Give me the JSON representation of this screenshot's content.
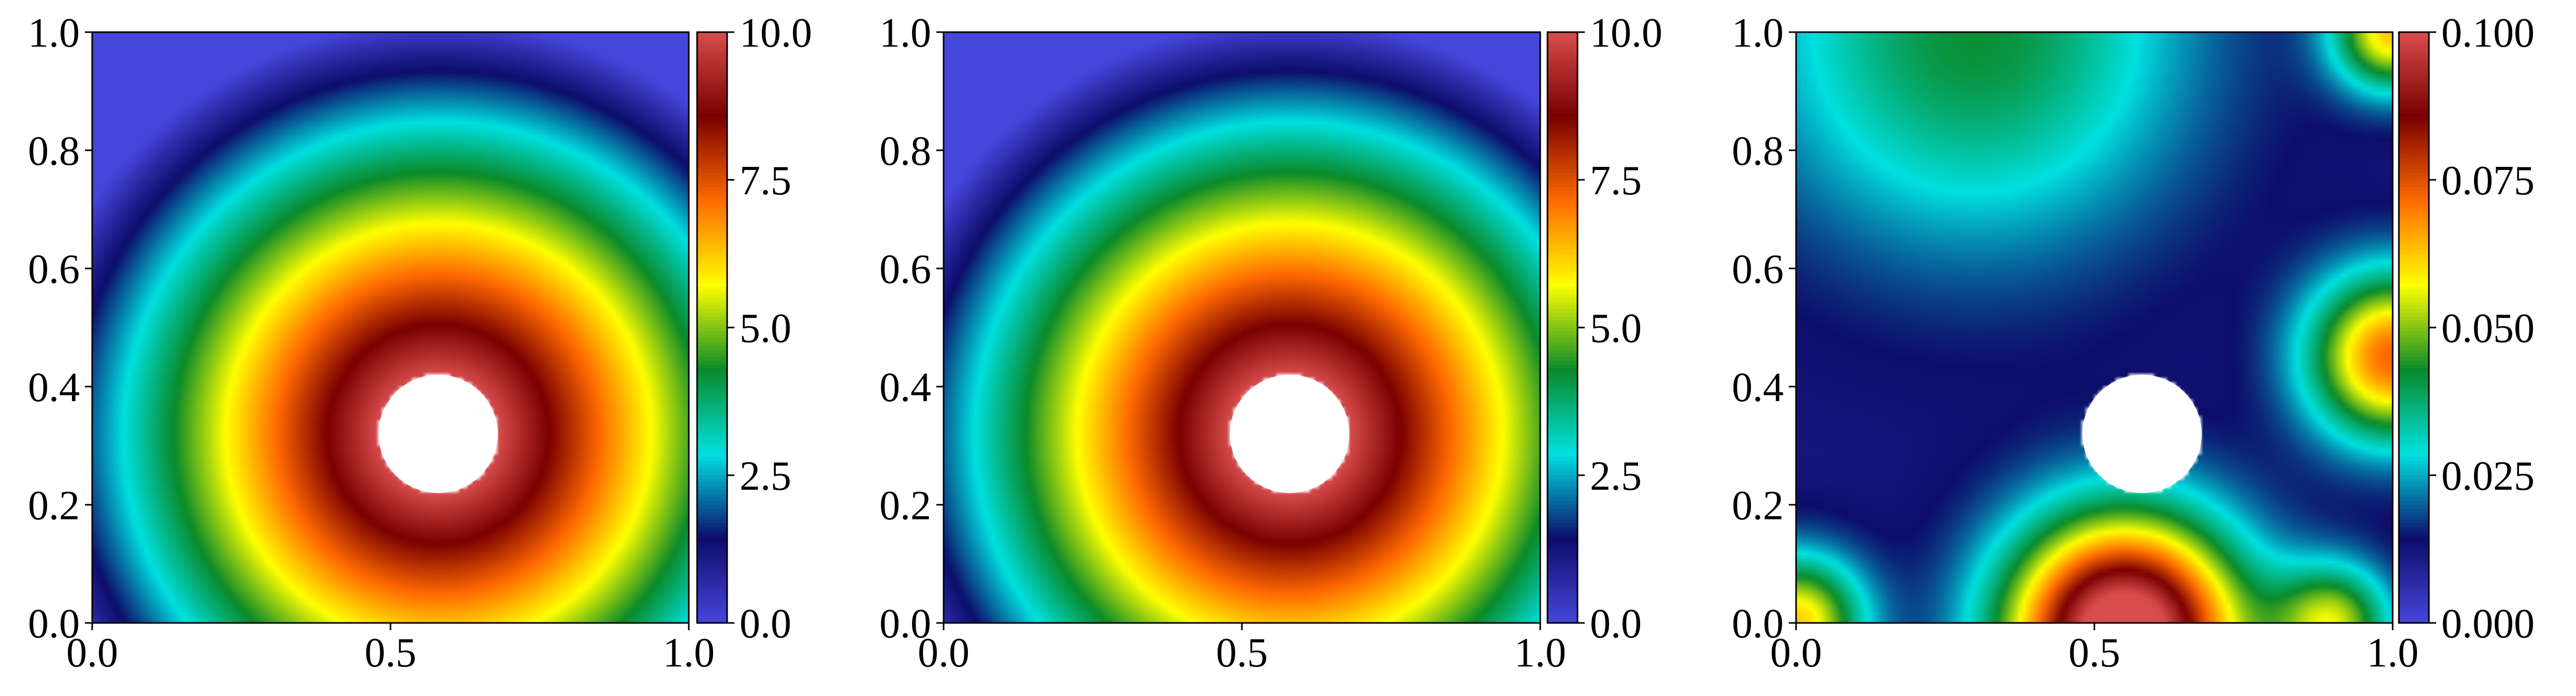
{
  "chart_data": [
    {
      "type": "heatmap",
      "title": "",
      "xlabel": "",
      "ylabel": "",
      "xlim": [
        0.0,
        1.0
      ],
      "ylim": [
        0.0,
        1.0
      ],
      "xticks": [
        "0.0",
        "0.5",
        "1.0"
      ],
      "yticks": [
        "0.0",
        "0.2",
        "0.4",
        "0.6",
        "0.8",
        "1.0"
      ],
      "colorbar": {
        "range": [
          0.0,
          10.0
        ],
        "ticks": [
          "0.0",
          "2.5",
          "5.0",
          "7.5",
          "10.0"
        ]
      },
      "colormap": [
        "#4646dc",
        "#0d0d6b",
        "#00e0e0",
        "#0a8a2a",
        "#ffff00",
        "#ff6a00",
        "#7a0000",
        "#d84c4c"
      ],
      "field": {
        "pattern": "concentric rings around hole",
        "hole_center": [
          0.58,
          0.32
        ],
        "hole_radius": 0.1,
        "peak_value": 10.0,
        "decay_length": 0.6
      }
    },
    {
      "type": "heatmap",
      "title": "",
      "xlabel": "",
      "ylabel": "",
      "xlim": [
        0.0,
        1.0
      ],
      "ylim": [
        0.0,
        1.0
      ],
      "xticks": [
        "0.0",
        "0.5",
        "1.0"
      ],
      "yticks": [
        "0.0",
        "0.2",
        "0.4",
        "0.6",
        "0.8",
        "1.0"
      ],
      "colorbar": {
        "range": [
          0.0,
          10.0
        ],
        "ticks": [
          "0.0",
          "2.5",
          "5.0",
          "7.5",
          "10.0"
        ]
      },
      "colormap": [
        "#4646dc",
        "#0d0d6b",
        "#00e0e0",
        "#0a8a2a",
        "#ffff00",
        "#ff6a00",
        "#7a0000",
        "#d84c4c"
      ],
      "field": {
        "pattern": "concentric rings around hole",
        "hole_center": [
          0.58,
          0.32
        ],
        "hole_radius": 0.1,
        "peak_value": 10.0,
        "decay_length": 0.6
      }
    },
    {
      "type": "heatmap",
      "title": "",
      "xlabel": "",
      "ylabel": "",
      "xlim": [
        0.0,
        1.0
      ],
      "ylim": [
        0.0,
        1.0
      ],
      "xticks": [
        "0.0",
        "0.5",
        "1.0"
      ],
      "yticks": [
        "0.0",
        "0.2",
        "0.4",
        "0.6",
        "0.8",
        "1.0"
      ],
      "colorbar": {
        "range": [
          0.0,
          0.1
        ],
        "ticks": [
          "0.000",
          "0.025",
          "0.050",
          "0.075",
          "0.100"
        ]
      },
      "colormap": [
        "#4646dc",
        "#0d0d6b",
        "#00e0e0",
        "#0a8a2a",
        "#ffff00",
        "#ff6a00",
        "#7a0000",
        "#d84c4c"
      ],
      "field": {
        "pattern": "error field",
        "hole_center": [
          0.58,
          0.32
        ],
        "hole_radius": 0.1,
        "hotspots": [
          {
            "x": 0.55,
            "y": -0.02,
            "value": 0.1,
            "spread": 0.14
          },
          {
            "x": 1.0,
            "y": 0.45,
            "value": 0.06,
            "spread": 0.1
          },
          {
            "x": 1.0,
            "y": 1.0,
            "value": 0.05,
            "spread": 0.07
          },
          {
            "x": 0.0,
            "y": 0.0,
            "value": 0.05,
            "spread": 0.08
          },
          {
            "x": 0.9,
            "y": 0.0,
            "value": 0.04,
            "spread": 0.07
          },
          {
            "x": 0.3,
            "y": 1.0,
            "value": 0.03,
            "spread": 0.25
          }
        ]
      }
    }
  ]
}
